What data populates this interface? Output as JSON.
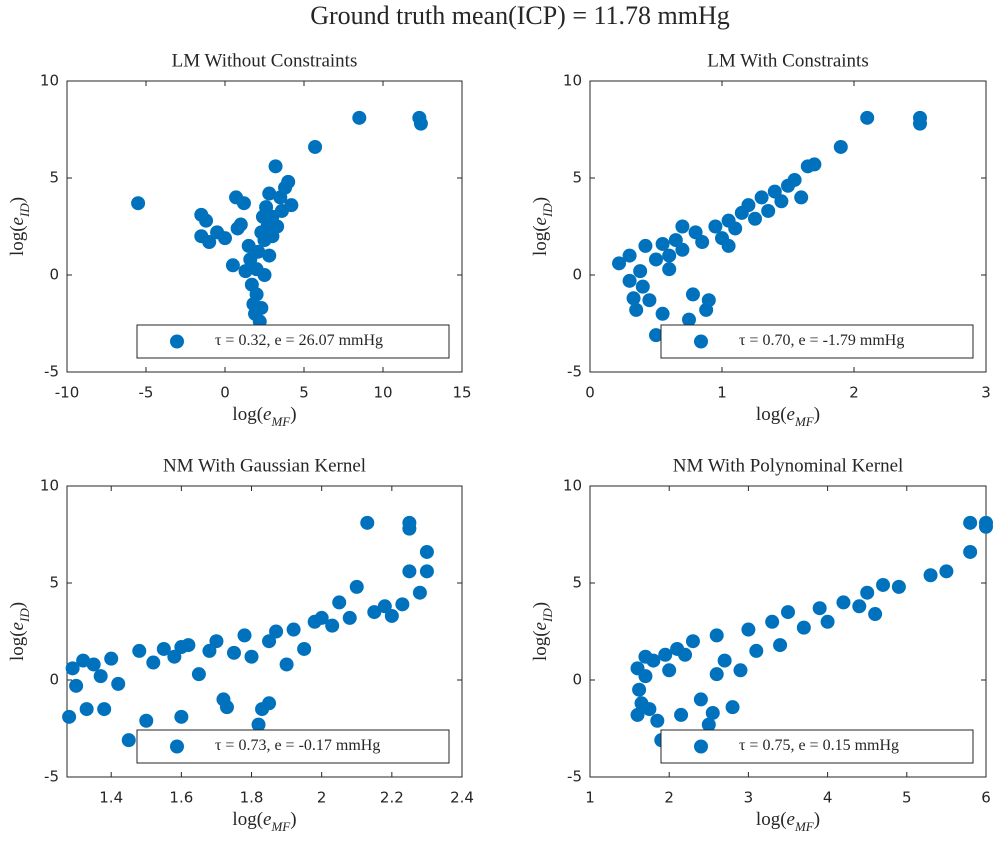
{
  "title": "Ground truth mean(ICP) = 11.78 mmHg",
  "chart_data": [
    {
      "type": "scatter",
      "title": "LM Without Constraints",
      "xlabel": [
        "log(",
        "e",
        "MF",
        ")"
      ],
      "ylabel": [
        "log(",
        "e",
        "ID",
        ")"
      ],
      "xlim": [
        -10,
        15
      ],
      "ylim": [
        -5,
        10
      ],
      "xticks": [
        -10,
        -5,
        0,
        5,
        10,
        15
      ],
      "yticks": [
        -5,
        0,
        5,
        10
      ],
      "legend": "lower right",
      "series": [
        {
          "name": "τ = 0.32, e = 26.07 mmHg",
          "color": "#0072bd",
          "x": [
            -5.5,
            -1.5,
            -1.2,
            -1.5,
            -1,
            -0.5,
            0,
            0.5,
            0.7,
            0.8,
            1,
            1.2,
            1.5,
            1.6,
            1.7,
            1.8,
            1.9,
            2,
            2.2,
            2.3,
            2,
            2.1,
            2.3,
            2.4,
            2.5,
            2.6,
            2.7,
            2.8,
            3,
            3.2,
            3.3,
            3.5,
            3.6,
            3.8,
            4,
            4.2,
            2.8,
            1.3,
            2.5,
            3,
            5.7,
            8.5,
            12.3,
            12.4
          ],
          "y": [
            3.7,
            3.1,
            2.8,
            2.0,
            1.7,
            2.2,
            1.9,
            0.5,
            4.0,
            2.4,
            2.6,
            3.7,
            1.5,
            0.8,
            -0.5,
            -1.5,
            -2.0,
            -1.0,
            -2.4,
            -1.7,
            0.3,
            1.2,
            2.2,
            3.0,
            1.8,
            3.5,
            2.5,
            4.2,
            3.0,
            5.6,
            2.5,
            4.0,
            3.3,
            4.5,
            4.8,
            3.6,
            1.0,
            0.2,
            0,
            2,
            6.6,
            8.1,
            8.1,
            7.8
          ]
        }
      ]
    },
    {
      "type": "scatter",
      "title": "LM With Constraints",
      "xlabel": [
        "log(",
        "e",
        "MF",
        ")"
      ],
      "ylabel": [
        "log(",
        "e",
        "ID",
        ")"
      ],
      "xlim": [
        0,
        3
      ],
      "ylim": [
        -5,
        10
      ],
      "xticks": [
        0,
        1,
        2,
        3
      ],
      "yticks": [
        -5,
        0,
        5,
        10
      ],
      "legend": "lower right",
      "series": [
        {
          "name": "τ = 0.70, e = -1.79 mmHg",
          "color": "#0072bd",
          "x": [
            0.22,
            0.3,
            0.3,
            0.33,
            0.35,
            0.38,
            0.4,
            0.42,
            0.45,
            0.5,
            0.55,
            0.5,
            0.55,
            0.6,
            0.65,
            0.7,
            0.75,
            0.78,
            0.8,
            0.85,
            0.9,
            0.88,
            0.95,
            1.0,
            1.05,
            1.1,
            1.15,
            1.2,
            1.25,
            1.3,
            1.35,
            1.4,
            1.45,
            1.5,
            1.55,
            1.6,
            1.65,
            1.7,
            1.9,
            2.1,
            2.5,
            2.5,
            0.7,
            0.6,
            1.05
          ],
          "y": [
            0.6,
            -0.3,
            1.0,
            -1.2,
            -1.8,
            0.2,
            -0.6,
            1.5,
            -1.3,
            -3.1,
            -2.0,
            0.8,
            1.6,
            1.0,
            1.8,
            1.3,
            -2.3,
            -1.0,
            2.2,
            1.7,
            -1.3,
            -1.8,
            2.5,
            1.9,
            2.8,
            2.4,
            3.2,
            3.6,
            2.9,
            4.0,
            3.3,
            4.3,
            3.8,
            4.6,
            4.9,
            4.0,
            5.6,
            5.7,
            6.6,
            8.1,
            8.1,
            7.8,
            2.5,
            0.3,
            1.5
          ]
        }
      ]
    },
    {
      "type": "scatter",
      "title": "NM With Gaussian Kernel",
      "xlabel": [
        "log(",
        "e",
        "MF",
        ")"
      ],
      "ylabel": [
        "log(",
        "e",
        "ID",
        ")"
      ],
      "xlim": [
        1.274,
        2.4
      ],
      "ylim": [
        -5,
        10
      ],
      "xticks": [
        1.4,
        1.6,
        1.8,
        2,
        2.2,
        2.4
      ],
      "yticks": [
        -5,
        0,
        5,
        10
      ],
      "legend": "lower right",
      "series": [
        {
          "name": "τ = 0.73, e = -0.17 mmHg",
          "color": "#0072bd",
          "x": [
            1.28,
            1.29,
            1.3,
            1.32,
            1.33,
            1.35,
            1.37,
            1.38,
            1.4,
            1.42,
            1.45,
            1.48,
            1.5,
            1.52,
            1.55,
            1.58,
            1.6,
            1.62,
            1.65,
            1.68,
            1.7,
            1.72,
            1.73,
            1.75,
            1.78,
            1.8,
            1.82,
            1.83,
            1.85,
            1.87,
            1.9,
            1.92,
            1.95,
            1.98,
            2.0,
            2.03,
            2.05,
            2.08,
            2.1,
            2.13,
            2.15,
            2.18,
            2.2,
            2.23,
            2.25,
            2.25,
            2.25,
            2.28,
            2.3,
            2.3,
            1.6,
            1.85
          ],
          "y": [
            -1.9,
            0.6,
            -0.3,
            1.0,
            -1.5,
            0.8,
            0.2,
            -1.5,
            1.1,
            -0.2,
            -3.1,
            1.5,
            -2.1,
            0.9,
            1.6,
            1.2,
            -1.9,
            1.8,
            0.3,
            1.5,
            2.0,
            -1.0,
            -1.4,
            1.4,
            2.3,
            1.2,
            -2.3,
            -1.5,
            -1.2,
            2.5,
            0.8,
            2.6,
            1.6,
            3.0,
            3.2,
            2.8,
            4.0,
            3.2,
            4.8,
            8.1,
            3.5,
            3.8,
            3.3,
            3.9,
            8.1,
            7.8,
            5.6,
            4.5,
            5.6,
            6.6,
            1.7,
            2.0
          ]
        }
      ]
    },
    {
      "type": "scatter",
      "title": "NM With Polynominal Kernel",
      "xlabel": [
        "log(",
        "e",
        "MF",
        ")"
      ],
      "ylabel": [
        "log(",
        "e",
        "ID",
        ")"
      ],
      "xlim": [
        1,
        6
      ],
      "ylim": [
        -5,
        10
      ],
      "xticks": [
        1,
        2,
        3,
        4,
        5,
        6
      ],
      "yticks": [
        -5,
        0,
        5,
        10
      ],
      "legend": "lower right",
      "series": [
        {
          "name": "τ = 0.75, e = 0.15 mmHg",
          "color": "#0072bd",
          "x": [
            1.6,
            1.6,
            1.62,
            1.65,
            1.7,
            1.75,
            1.8,
            1.85,
            1.9,
            1.95,
            2.0,
            2.1,
            2.15,
            2.2,
            2.3,
            2.4,
            2.5,
            2.55,
            2.6,
            2.7,
            2.8,
            2.9,
            3.0,
            3.1,
            3.3,
            3.4,
            3.5,
            3.7,
            3.9,
            4.0,
            4.2,
            4.4,
            4.5,
            4.6,
            4.7,
            4.9,
            5.3,
            5.5,
            5.8,
            5.8,
            6.0,
            6.0,
            1.7,
            2.6
          ],
          "y": [
            0.6,
            -1.8,
            -0.5,
            -1.2,
            0.2,
            -1.5,
            1.0,
            -2.1,
            -3.1,
            1.3,
            0.5,
            1.6,
            -1.8,
            1.3,
            2.0,
            -1.0,
            -2.3,
            -1.7,
            2.3,
            1.0,
            -1.4,
            0.5,
            2.6,
            1.5,
            3.0,
            1.8,
            3.5,
            2.7,
            3.7,
            3.0,
            4.0,
            3.8,
            4.5,
            3.4,
            4.9,
            4.8,
            5.4,
            5.6,
            6.6,
            8.1,
            8.1,
            7.9,
            1.2,
            0.3
          ]
        }
      ]
    }
  ]
}
